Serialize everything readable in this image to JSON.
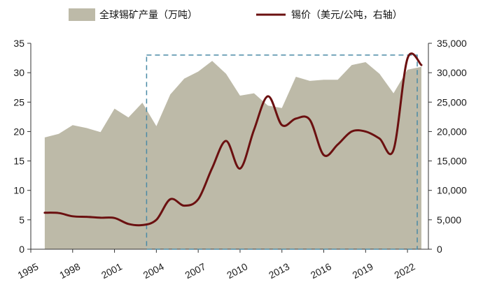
{
  "chart_data": {
    "type": "area+line",
    "title": "",
    "xlabel": "",
    "ylabel_left": "",
    "ylabel_right": "",
    "x_tick_labels": [
      "1995",
      "1998",
      "2001",
      "2004",
      "2007",
      "2010",
      "2013",
      "2016",
      "2019",
      "2022"
    ],
    "left_axis": {
      "min": 0,
      "max": 35,
      "ticks": [
        "0",
        "5",
        "10",
        "15",
        "20",
        "25",
        "30",
        "35"
      ]
    },
    "right_axis": {
      "min": 0,
      "max": 35000,
      "ticks": [
        "0",
        "5,000",
        "10,000",
        "15,000",
        "20,000",
        "25,000",
        "30,000",
        "35,000"
      ]
    },
    "legend": {
      "area_label": "全球锡矿产量（万吨）",
      "line_label": "锡价（美元/公吨，右轴）",
      "placement": "top"
    },
    "highlight_box": {
      "x_start": 2003.3,
      "x_end": 2022.7,
      "y_min": 0,
      "y_max": 33
    },
    "series": [
      {
        "name": "全球锡矿产量（万吨）",
        "axis": "left",
        "kind": "area",
        "color": "#bdbaa8",
        "points": [
          [
            1996,
            19.0
          ],
          [
            1997,
            19.6
          ],
          [
            1998,
            21.1
          ],
          [
            1999,
            20.6
          ],
          [
            2000,
            19.9
          ],
          [
            2001,
            23.9
          ],
          [
            2002,
            22.4
          ],
          [
            2003,
            24.9
          ],
          [
            2004,
            20.9
          ],
          [
            2005,
            26.3
          ],
          [
            2006,
            29.0
          ],
          [
            2007,
            30.2
          ],
          [
            2008,
            32.0
          ],
          [
            2009,
            29.8
          ],
          [
            2010,
            26.1
          ],
          [
            2011,
            26.5
          ],
          [
            2012,
            24.4
          ],
          [
            2013,
            24.0
          ],
          [
            2014,
            29.3
          ],
          [
            2015,
            28.6
          ],
          [
            2016,
            28.8
          ],
          [
            2017,
            28.8
          ],
          [
            2018,
            31.3
          ],
          [
            2019,
            31.8
          ],
          [
            2020,
            29.8
          ],
          [
            2021,
            26.5
          ],
          [
            2022,
            30.5
          ],
          [
            2023,
            31.0
          ]
        ]
      },
      {
        "name": "锡价（美元/公吨，右轴）",
        "axis": "right",
        "kind": "line",
        "color": "#6b1010",
        "points": [
          [
            1996,
            6200
          ],
          [
            1997,
            6150
          ],
          [
            1998,
            5600
          ],
          [
            1999,
            5500
          ],
          [
            2000,
            5350
          ],
          [
            2001,
            5300
          ],
          [
            2002,
            4300
          ],
          [
            2003,
            4100
          ],
          [
            2004,
            5000
          ],
          [
            2005,
            8500
          ],
          [
            2006,
            7400
          ],
          [
            2007,
            8500
          ],
          [
            2008,
            13800
          ],
          [
            2009,
            18400
          ],
          [
            2010,
            13700
          ],
          [
            2011,
            20300
          ],
          [
            2012,
            26000
          ],
          [
            2013,
            21100
          ],
          [
            2014,
            22200
          ],
          [
            2015,
            22000
          ],
          [
            2016,
            16000
          ],
          [
            2017,
            17800
          ],
          [
            2018,
            20000
          ],
          [
            2019,
            20000
          ],
          [
            2020,
            18800
          ],
          [
            2021,
            16900
          ],
          [
            2022,
            32400
          ],
          [
            2023,
            31300
          ]
        ]
      }
    ]
  }
}
